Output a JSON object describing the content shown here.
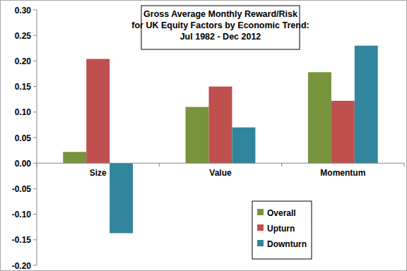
{
  "chart_data": {
    "type": "bar",
    "title": "Gross Average Monthly Reward/Risk\nfor UK Equity Factors by Economic Trend:\nJul 1982 - Dec 2012",
    "categories": [
      "Size",
      "Value",
      "Momentum"
    ],
    "series": [
      {
        "name": "Overall",
        "color": "#77933c",
        "values": [
          0.022,
          0.11,
          0.178
        ]
      },
      {
        "name": "Upturn",
        "color": "#c0504d",
        "values": [
          0.204,
          0.15,
          0.122
        ]
      },
      {
        "name": "Downturn",
        "color": "#31859c",
        "values": [
          -0.137,
          0.07,
          0.23
        ]
      }
    ],
    "ylim": [
      -0.2,
      0.3
    ],
    "yticks": [
      {
        "value": -0.2,
        "label": "-0.20"
      },
      -0.15,
      {
        "value": -0.1,
        "label": "-0.10"
      },
      -0.05,
      {
        "value": 0,
        "label": "0.00"
      },
      0.05,
      {
        "value": 0.1,
        "label": "0.10"
      },
      0.15,
      {
        "value": 0.2,
        "label": "0.20"
      },
      0.25,
      {
        "value": 0.3,
        "label": "0.30"
      }
    ],
    "grid": false,
    "legend": "bottom-right"
  }
}
